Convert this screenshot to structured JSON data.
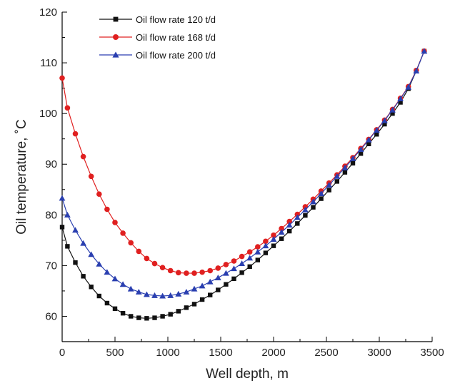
{
  "chart_data": {
    "type": "line",
    "xlabel": "Well depth, m",
    "ylabel": "Oil temperature, ˚C",
    "xlim": [
      0,
      3500
    ],
    "ylim": [
      55,
      120
    ],
    "xticks": [
      0,
      500,
      1000,
      1500,
      2000,
      2500,
      3000,
      3500
    ],
    "yticks": [
      60,
      70,
      80,
      90,
      100,
      110,
      120
    ],
    "grid": false,
    "legend_position": "top-left",
    "series": [
      {
        "name": "Oil flow rate 120 t/d",
        "color": "#111111",
        "marker": "square",
        "x": [
          0,
          50,
          125,
          200,
          275,
          350,
          425,
          500,
          575,
          650,
          725,
          800,
          875,
          950,
          1025,
          1100,
          1175,
          1250,
          1325,
          1400,
          1475,
          1550,
          1625,
          1700,
          1775,
          1850,
          1925,
          2000,
          2075,
          2150,
          2225,
          2300,
          2375,
          2450,
          2525,
          2600,
          2675,
          2750,
          2825,
          2900,
          2975,
          3050,
          3125,
          3200,
          3275,
          3350,
          3425
        ],
        "y": [
          77.6,
          73.8,
          70.6,
          67.9,
          65.8,
          64.0,
          62.6,
          61.5,
          60.6,
          60.0,
          59.7,
          59.6,
          59.7,
          60.0,
          60.4,
          61.0,
          61.7,
          62.4,
          63.3,
          64.2,
          65.2,
          66.3,
          67.4,
          68.6,
          69.8,
          71.1,
          72.5,
          73.9,
          75.3,
          76.8,
          78.3,
          79.9,
          81.5,
          83.2,
          84.9,
          86.6,
          88.4,
          90.2,
          92.1,
          94.0,
          95.9,
          97.9,
          100.0,
          102.2,
          104.9,
          108.4,
          112.3
        ]
      },
      {
        "name": "Oil flow rate 168 t/d",
        "color": "#e02020",
        "marker": "circle",
        "x": [
          0,
          50,
          125,
          200,
          275,
          350,
          425,
          500,
          575,
          650,
          725,
          800,
          875,
          950,
          1025,
          1100,
          1175,
          1250,
          1325,
          1400,
          1475,
          1550,
          1625,
          1700,
          1775,
          1850,
          1925,
          2000,
          2075,
          2150,
          2225,
          2300,
          2375,
          2450,
          2525,
          2600,
          2675,
          2750,
          2825,
          2900,
          2975,
          3050,
          3125,
          3200,
          3275,
          3350,
          3425
        ],
        "y": [
          107.0,
          101.1,
          96.0,
          91.5,
          87.6,
          84.1,
          81.1,
          78.5,
          76.4,
          74.5,
          72.8,
          71.4,
          70.4,
          69.6,
          69.0,
          68.6,
          68.5,
          68.5,
          68.7,
          69.0,
          69.5,
          70.2,
          70.9,
          71.8,
          72.7,
          73.7,
          74.8,
          76.0,
          77.3,
          78.7,
          80.1,
          81.6,
          83.1,
          84.7,
          86.3,
          87.9,
          89.6,
          91.3,
          93.1,
          94.9,
          96.8,
          98.7,
          100.8,
          103.0,
          105.3,
          108.5,
          112.3
        ]
      },
      {
        "name": "Oil flow rate 200 t/d",
        "color": "#2a3fb0",
        "marker": "triangle",
        "x": [
          0,
          50,
          125,
          200,
          275,
          350,
          425,
          500,
          575,
          650,
          725,
          800,
          875,
          950,
          1025,
          1100,
          1175,
          1250,
          1325,
          1400,
          1475,
          1550,
          1625,
          1700,
          1775,
          1850,
          1925,
          2000,
          2075,
          2150,
          2225,
          2300,
          2375,
          2450,
          2525,
          2600,
          2675,
          2750,
          2825,
          2900,
          2975,
          3050,
          3125,
          3200,
          3275,
          3350,
          3425
        ],
        "y": [
          83.3,
          80.0,
          77.0,
          74.4,
          72.2,
          70.3,
          68.7,
          67.4,
          66.3,
          65.4,
          64.8,
          64.3,
          64.1,
          64.0,
          64.1,
          64.4,
          64.8,
          65.4,
          66.0,
          66.8,
          67.6,
          68.5,
          69.4,
          70.4,
          71.5,
          72.7,
          73.9,
          75.2,
          76.6,
          78.0,
          79.5,
          81.0,
          82.6,
          84.2,
          85.9,
          87.6,
          89.3,
          91.1,
          92.9,
          94.8,
          96.7,
          98.6,
          100.7,
          102.9,
          105.2,
          108.4,
          112.3
        ]
      }
    ]
  }
}
